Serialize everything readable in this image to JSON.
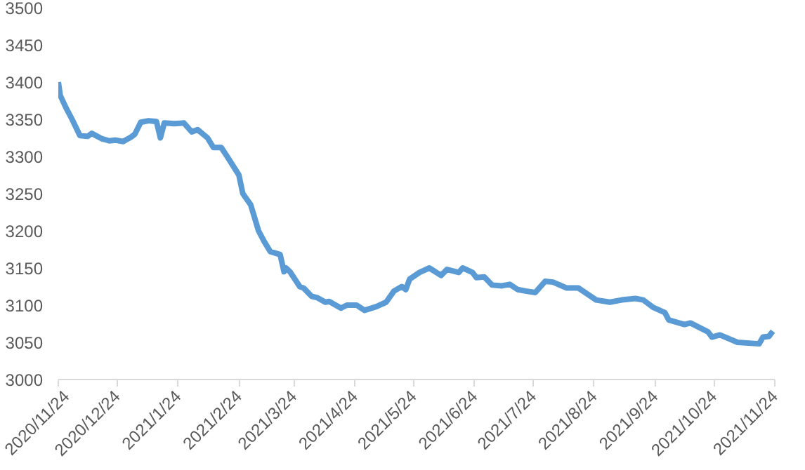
{
  "chart_data": {
    "type": "line",
    "grid": false,
    "marker": "none",
    "line_style": "solid",
    "xlim": [
      "2020-11-24",
      "2021-11-24"
    ],
    "xticks": [
      {
        "value": "2020-11-24",
        "label": "2020/11/24"
      },
      {
        "value": "2020-12-24",
        "label": "2020/12/24"
      },
      {
        "value": "2021-01-24",
        "label": "2021/1/24"
      },
      {
        "value": "2021-02-24",
        "label": "2021/2/24"
      },
      {
        "value": "2021-03-24",
        "label": "2021/3/24"
      },
      {
        "value": "2021-04-24",
        "label": "2021/4/24"
      },
      {
        "value": "2021-05-24",
        "label": "2021/5/24"
      },
      {
        "value": "2021-06-24",
        "label": "2021/6/24"
      },
      {
        "value": "2021-07-24",
        "label": "2021/7/24"
      },
      {
        "value": "2021-08-24",
        "label": "2021/8/24"
      },
      {
        "value": "2021-09-24",
        "label": "2021/9/24"
      },
      {
        "value": "2021-10-24",
        "label": "2021/10/24"
      },
      {
        "value": "2021-11-24",
        "label": "2021/11/24"
      }
    ],
    "ylim": [
      3000,
      3500
    ],
    "yticks": [
      3000,
      3050,
      3100,
      3150,
      3200,
      3250,
      3300,
      3350,
      3400,
      3450,
      3500
    ],
    "x": [
      "2020-11-24",
      "2020-11-25",
      "2020-11-28",
      "2020-12-01",
      "2020-12-05",
      "2020-12-09",
      "2020-12-11",
      "2020-12-16",
      "2020-12-20",
      "2020-12-23",
      "2020-12-27",
      "2020-12-31",
      "2021-01-02",
      "2021-01-05",
      "2021-01-09",
      "2021-01-13",
      "2021-01-15",
      "2021-01-17",
      "2021-01-22",
      "2021-01-27",
      "2021-01-31",
      "2021-02-03",
      "2021-02-08",
      "2021-02-11",
      "2021-02-15",
      "2021-02-18",
      "2021-02-24",
      "2021-02-26",
      "2021-03-02",
      "2021-03-06",
      "2021-03-09",
      "2021-03-12",
      "2021-03-17",
      "2021-03-19",
      "2021-03-20",
      "2021-03-22",
      "2021-03-27",
      "2021-03-29",
      "2021-04-02",
      "2021-04-05",
      "2021-04-09",
      "2021-04-11",
      "2021-04-17",
      "2021-04-20",
      "2021-04-25",
      "2021-04-29",
      "2021-05-05",
      "2021-05-10",
      "2021-05-14",
      "2021-05-18",
      "2021-05-20",
      "2021-05-22",
      "2021-05-27",
      "2021-06-01",
      "2021-06-07",
      "2021-06-10",
      "2021-06-16",
      "2021-06-18",
      "2021-06-23",
      "2021-06-25",
      "2021-06-29",
      "2021-07-03",
      "2021-07-08",
      "2021-07-12",
      "2021-07-16",
      "2021-07-20",
      "2021-07-25",
      "2021-07-30",
      "2021-08-03",
      "2021-08-10",
      "2021-08-16",
      "2021-08-25",
      "2021-09-01",
      "2021-09-07",
      "2021-09-14",
      "2021-09-18",
      "2021-09-23",
      "2021-09-29",
      "2021-10-01",
      "2021-10-09",
      "2021-10-12",
      "2021-10-21",
      "2021-10-23",
      "2021-10-27",
      "2021-11-05",
      "2021-11-16",
      "2021-11-18",
      "2021-11-21",
      "2021-11-23"
    ],
    "series": [
      {
        "color": "#5b9bd5",
        "values": [
          3400,
          3382,
          3365,
          3350,
          3328,
          3327,
          3331,
          3324,
          3321,
          3322,
          3320,
          3326,
          3330,
          3346,
          3348,
          3347,
          3325,
          3345,
          3344,
          3345,
          3333,
          3336,
          3325,
          3312,
          3312,
          3300,
          3275,
          3250,
          3235,
          3200,
          3185,
          3172,
          3168,
          3145,
          3150,
          3145,
          3125,
          3123,
          3112,
          3110,
          3104,
          3105,
          3096,
          3100,
          3100,
          3093,
          3098,
          3104,
          3119,
          3125,
          3121,
          3135,
          3144,
          3150,
          3140,
          3148,
          3144,
          3150,
          3144,
          3137,
          3138,
          3127,
          3126,
          3128,
          3121,
          3119,
          3117,
          3132,
          3131,
          3123,
          3123,
          3107,
          3104,
          3107,
          3109,
          3107,
          3097,
          3090,
          3080,
          3074,
          3076,
          3064,
          3057,
          3060,
          3050,
          3048,
          3057,
          3058,
          3065
        ]
      }
    ]
  }
}
